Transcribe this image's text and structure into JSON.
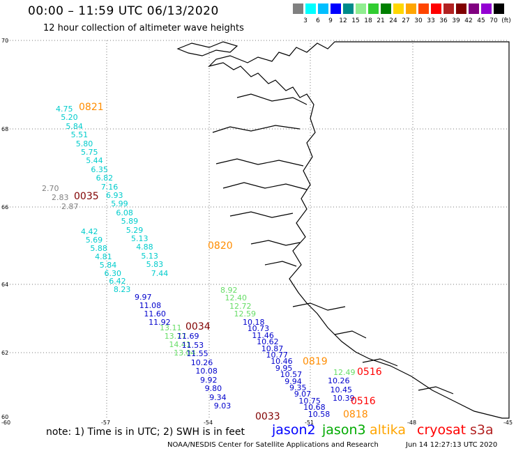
{
  "header": {
    "title": "00:00 – 11:59 UTC 06/13/2020",
    "subtitle": "12 hour collection of altimeter wave heights"
  },
  "scale": {
    "unit": "(ft)",
    "colors": [
      "#808080",
      "#00ffff",
      "#00bfff",
      "#0000ff",
      "#008b8b",
      "#90ee90",
      "#32cd32",
      "#008000",
      "#ffd700",
      "#ffa500",
      "#ff4500",
      "#ff0000",
      "#b22222",
      "#800000",
      "#800080",
      "#9400d3",
      "#000000"
    ],
    "labels": [
      "3",
      "6",
      "9",
      "12",
      "15",
      "18",
      "21",
      "24",
      "27",
      "30",
      "33",
      "36",
      "39",
      "42",
      "45",
      "70"
    ]
  },
  "map": {
    "lat_labels": [
      "70",
      "68",
      "66",
      "64",
      "62",
      "60"
    ],
    "lon_labels": [
      "-60",
      "-57",
      "-54",
      "-51",
      "-48",
      "-45"
    ]
  },
  "passes": [
    {
      "label": "0821",
      "color": "#ff8c00"
    },
    {
      "label": "0035",
      "color": "#800000"
    },
    {
      "label": "0820",
      "color": "#ff8c00"
    },
    {
      "label": "0034",
      "color": "#800000"
    },
    {
      "label": "0819",
      "color": "#ff8c00"
    },
    {
      "label": "0516",
      "color": "#ff0000"
    },
    {
      "label": "0516",
      "color": "#ff0000"
    },
    {
      "label": "0818",
      "color": "#ff8c00"
    },
    {
      "label": "0033",
      "color": "#800000"
    }
  ],
  "tracks": [
    {
      "color": "#00cccc",
      "values": [
        "4.75",
        "5.20",
        "5.84",
        "5.51",
        "5.80",
        "5.75",
        "5.44",
        "6.35",
        "6.82",
        "7.16",
        "6.93",
        "5.99",
        "6.08",
        "5.89",
        "5.29",
        "5.13",
        "4.88",
        "5.13",
        "5.83",
        "7.44"
      ]
    },
    {
      "color": "#808080",
      "values": [
        "2.70",
        "2.83",
        "2.87"
      ]
    },
    {
      "color": "#00cccc",
      "values": [
        "4.42",
        "5.69",
        "5.88",
        "4.81",
        "5.84",
        "6.30",
        "6.42",
        "8.23"
      ]
    },
    {
      "color": "#0000cc",
      "values": [
        "9.97",
        "11.08",
        "11.60",
        "11.92"
      ]
    },
    {
      "color": "#66dd66",
      "values": [
        "13.11",
        "13.77",
        "14.41",
        "13.04"
      ]
    },
    {
      "color": "#0000cc",
      "values": [
        "11.69",
        "11.53",
        "11.55",
        "10.26",
        "10.08",
        "9.92",
        "9.80",
        "9.34",
        "9.03"
      ]
    },
    {
      "color": "#66dd66",
      "values": [
        "8.92",
        "12.40",
        "12.72",
        "12.59"
      ]
    },
    {
      "color": "#0000cc",
      "values": [
        "10.18",
        "10.73",
        "11.46",
        "10.62",
        "10.87",
        "10.77",
        "10.46",
        "9.95",
        "10.57",
        "9.94",
        "9.35",
        "9.07",
        "10.75",
        "10.68",
        "10.58"
      ]
    },
    {
      "color": "#66dd66",
      "values": [
        "12.49"
      ]
    },
    {
      "color": "#0000cc",
      "values": [
        "10.26",
        "10.45",
        "10.39"
      ]
    }
  ],
  "note": "note: 1) Time is in UTC; 2) SWH is in feet",
  "satellites": [
    {
      "name": "jason2",
      "color": "#0000ff"
    },
    {
      "name": "jason3",
      "color": "#00aa00"
    },
    {
      "name": "altika",
      "color": "#ffa500"
    },
    {
      "name": "cryosat",
      "color": "#ff0000"
    },
    {
      "name": "s3a",
      "color": "#b22222"
    }
  ],
  "footer": {
    "credit": "NOAA/NESDIS Center for Satellite Applications and Research",
    "timestamp": "Jun 14 12:27:13 UTC 2020"
  }
}
